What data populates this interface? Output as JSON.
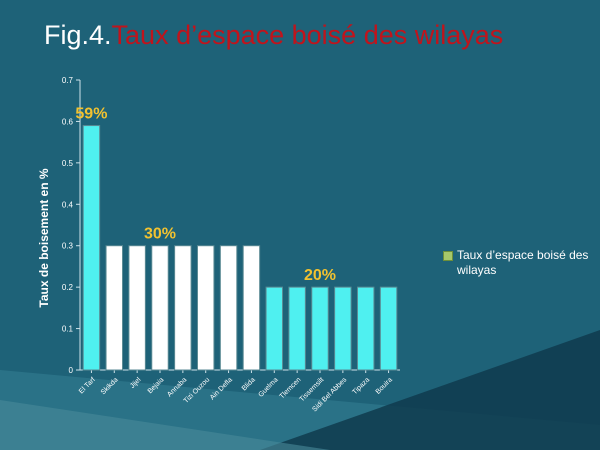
{
  "slide": {
    "title_prefix": "Fig.4.",
    "title_main": "Taux d’espace boisé des wilayas"
  },
  "chart_data": {
    "type": "bar",
    "categories": [
      "El Tarf",
      "Skikda",
      "Jijel",
      "Bejaia",
      "Annaba",
      "Tizi Ouzou",
      "Ain Defla",
      "Blida",
      "Guelma",
      "Tlemcen",
      "Tissemsilt",
      "Sidi Bel Abbes",
      "Tipaza",
      "Bouira"
    ],
    "series": [
      {
        "name": "Taux d’espace boisé des wilayas",
        "values": [
          0.59,
          0.3,
          0.3,
          0.3,
          0.3,
          0.3,
          0.3,
          0.3,
          0.2,
          0.2,
          0.2,
          0.2,
          0.2,
          0.2
        ]
      }
    ],
    "bar_colors": [
      "#4ff0f0",
      "#ffffff",
      "#ffffff",
      "#ffffff",
      "#ffffff",
      "#ffffff",
      "#ffffff",
      "#ffffff",
      "#4ff0f0",
      "#4ff0f0",
      "#4ff0f0",
      "#4ff0f0",
      "#4ff0f0",
      "#4ff0f0"
    ],
    "ylabel": "Taux de boisement en %",
    "xlabel": "",
    "ylim": [
      0,
      0.7
    ],
    "yticks": [
      0,
      0.1,
      0.2,
      0.3,
      0.4,
      0.5,
      0.6,
      0.7
    ],
    "grid": false,
    "legend_position": "right",
    "annotations": [
      {
        "text": "59%",
        "bar_index": 0,
        "value": 0.59
      },
      {
        "text": "30%",
        "bar_index": 3,
        "value": 0.3
      },
      {
        "text": "20%",
        "bar_index": 10,
        "value": 0.2
      }
    ],
    "annotation_color": "#f2c230"
  }
}
